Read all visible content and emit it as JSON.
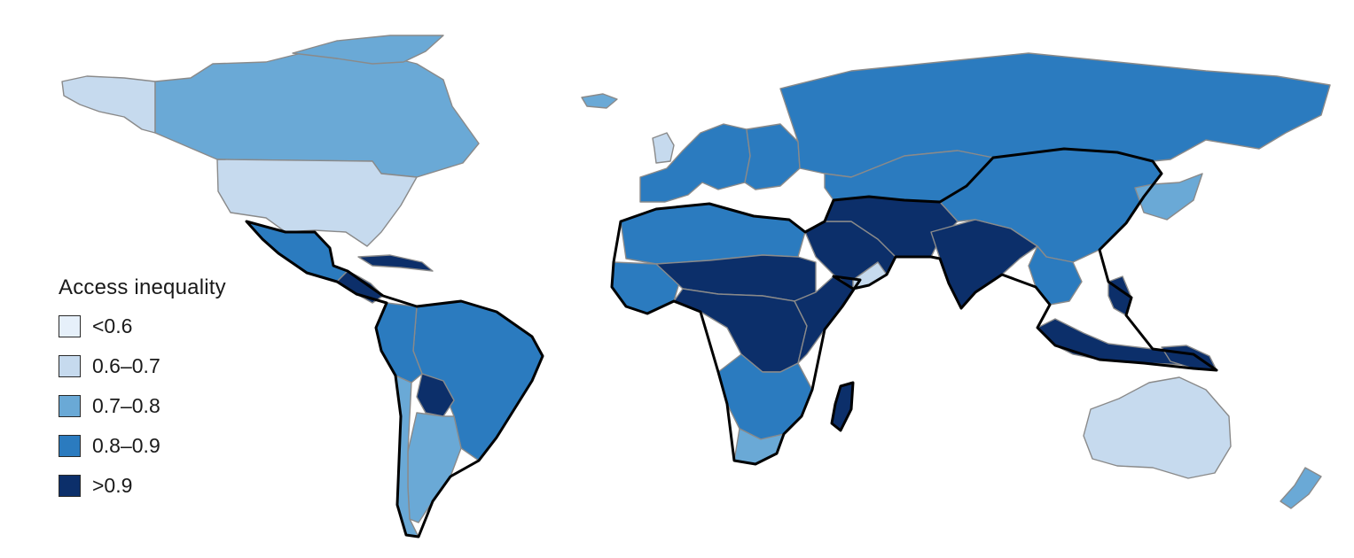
{
  "legend": {
    "title": "Access inequality",
    "classes": [
      {
        "label": "<0.6",
        "color": "#e6f0fa"
      },
      {
        "label": "0.6–0.7",
        "color": "#c6daee"
      },
      {
        "label": "0.7–0.8",
        "color": "#6aa9d6"
      },
      {
        "label": "0.8–0.9",
        "color": "#2b7bbf"
      },
      {
        "label": ">0.9",
        "color": "#0c2f6a"
      }
    ]
  },
  "colors": {
    "ocean": "#ffffff",
    "country_border": "#8a8a8a",
    "highlight_border": "#000000"
  },
  "regions": [
    {
      "name": "Alaska",
      "class": 1
    },
    {
      "name": "Canada",
      "class": 2
    },
    {
      "name": "Greenland",
      "class": 2
    },
    {
      "name": "United States",
      "class": 1
    },
    {
      "name": "Mexico",
      "class": 3
    },
    {
      "name": "Central America",
      "class": 4
    },
    {
      "name": "Caribbean",
      "class": 4
    },
    {
      "name": "Brazil",
      "class": 3
    },
    {
      "name": "Andean countries",
      "class": 3
    },
    {
      "name": "Bolivia",
      "class": 4
    },
    {
      "name": "Argentina",
      "class": 2
    },
    {
      "name": "Chile",
      "class": 2
    },
    {
      "name": "Iceland",
      "class": 2
    },
    {
      "name": "United Kingdom",
      "class": 1
    },
    {
      "name": "Western Europe",
      "class": 3
    },
    {
      "name": "Eastern Europe",
      "class": 3
    },
    {
      "name": "Russia",
      "class": 3
    },
    {
      "name": "North Africa",
      "class": 3
    },
    {
      "name": "West Africa",
      "class": 3
    },
    {
      "name": "Sahel",
      "class": 4
    },
    {
      "name": "Central Africa",
      "class": 4
    },
    {
      "name": "East Africa",
      "class": 4
    },
    {
      "name": "Southern Africa",
      "class": 3
    },
    {
      "name": "South Africa",
      "class": 2
    },
    {
      "name": "Madagascar",
      "class": 4
    },
    {
      "name": "Arabian Peninsula",
      "class": 4
    },
    {
      "name": "Oman",
      "class": 1
    },
    {
      "name": "Central Asia",
      "class": 3
    },
    {
      "name": "Iran-Afghanistan-Pakistan",
      "class": 4
    },
    {
      "name": "India",
      "class": 4
    },
    {
      "name": "China-Mongolia",
      "class": 3
    },
    {
      "name": "Korea-Japan",
      "class": 2
    },
    {
      "name": "Southeast Asia",
      "class": 3
    },
    {
      "name": "Indonesia",
      "class": 4
    },
    {
      "name": "Philippines",
      "class": 4
    },
    {
      "name": "Papua New Guinea",
      "class": 4
    },
    {
      "name": "Australia",
      "class": 1
    },
    {
      "name": "New Zealand",
      "class": 2
    }
  ]
}
